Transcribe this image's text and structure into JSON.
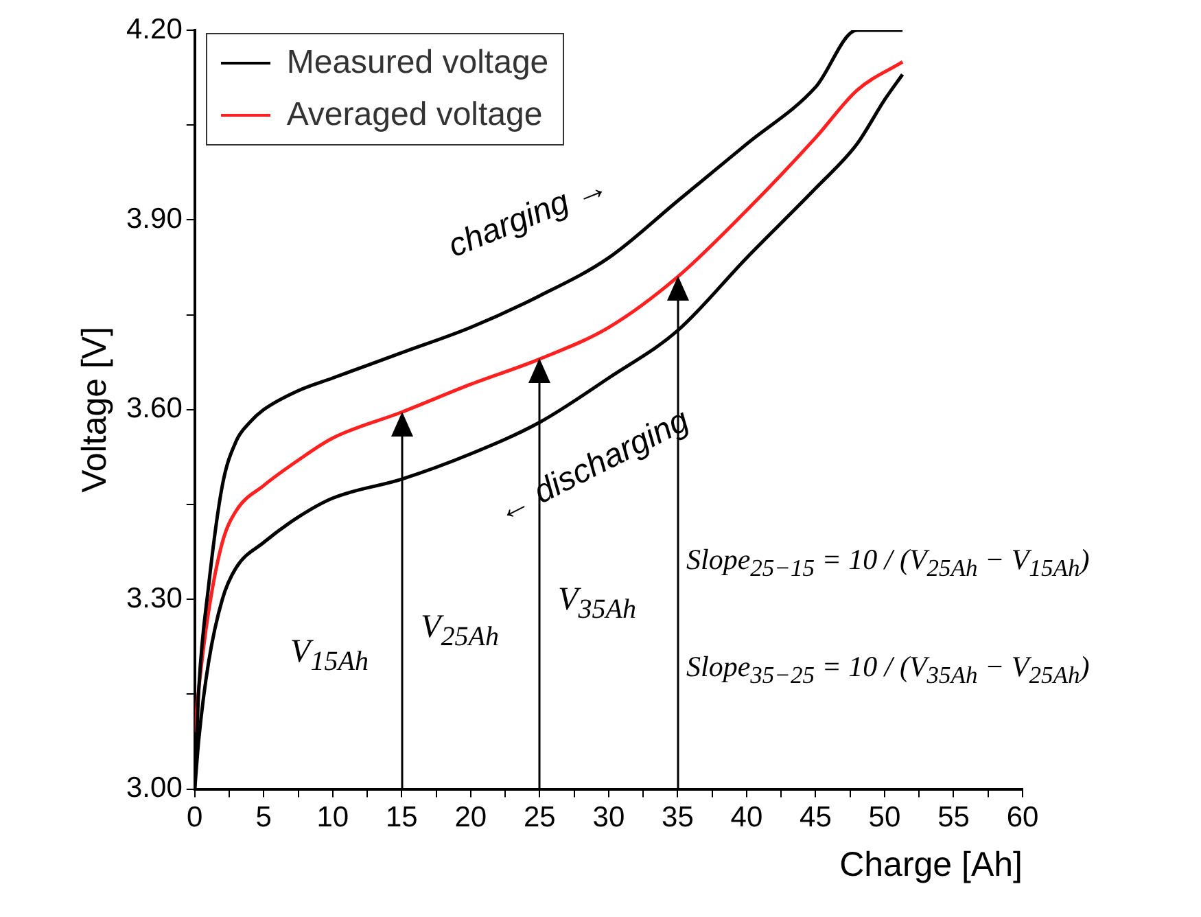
{
  "chart_data": {
    "type": "line",
    "xlabel": "Charge [Ah]",
    "ylabel": "Voltage [V]",
    "xlim": [
      0,
      60
    ],
    "xticks": [
      0,
      {
        "value": 2.5,
        "label": null
      },
      5,
      {
        "value": 7.5,
        "label": null
      },
      10,
      {
        "value": 12.5,
        "label": null
      },
      15,
      {
        "value": 17.5,
        "label": null
      },
      20,
      {
        "value": 22.5,
        "label": null
      },
      25,
      {
        "value": 27.5,
        "label": null
      },
      30,
      {
        "value": 32.5,
        "label": null
      },
      35,
      {
        "value": 37.5,
        "label": null
      },
      40,
      {
        "value": 42.5,
        "label": null
      },
      45,
      {
        "value": 47.5,
        "label": null
      },
      50,
      {
        "value": 52.5,
        "label": null
      },
      55,
      {
        "value": 57.5,
        "label": null
      },
      60
    ],
    "ylim": [
      3.0,
      4.2
    ],
    "yticks": [
      {
        "value": 3.0,
        "label": "3.00"
      },
      {
        "value": 3.15,
        "label": null
      },
      {
        "value": 3.3,
        "label": "3.30"
      },
      {
        "value": 3.45,
        "label": null
      },
      {
        "value": 3.6,
        "label": "3.60"
      },
      {
        "value": 3.75,
        "label": null
      },
      {
        "value": 3.9,
        "label": "3.90"
      },
      {
        "value": 4.05,
        "label": null
      },
      {
        "value": 4.2,
        "label": "4.20"
      }
    ],
    "legend": "top left",
    "grid": false,
    "series": [
      {
        "name": "Measured voltage",
        "color": "#000000",
        "x": [
          0,
          0.3,
          1,
          2,
          3,
          4,
          5,
          7.5,
          10,
          12.5,
          15,
          20,
          25,
          30,
          35,
          40,
          45,
          48,
          51.3
        ],
        "values": [
          3.0,
          3.16,
          3.32,
          3.48,
          3.55,
          3.58,
          3.6,
          3.63,
          3.65,
          3.67,
          3.69,
          3.73,
          3.78,
          3.84,
          3.93,
          4.02,
          4.11,
          4.2,
          4.2
        ]
      },
      {
        "name": "Averaged voltage",
        "color": "#ff2020",
        "x": [
          0,
          0.3,
          1,
          2,
          3,
          5,
          7.5,
          10,
          15,
          20,
          25,
          30,
          35,
          40,
          45,
          48,
          51.3
        ],
        "values": [
          3.09,
          3.16,
          3.28,
          3.39,
          3.44,
          3.48,
          3.52,
          3.555,
          3.596,
          3.64,
          3.68,
          3.73,
          3.81,
          3.915,
          4.03,
          4.105,
          4.15
        ]
      },
      {
        "color": "#000000",
        "x": [
          0,
          0.3,
          1,
          2,
          3,
          5,
          7.5,
          10,
          15,
          20,
          25,
          30,
          35,
          40,
          45,
          48,
          50,
          51.3
        ],
        "values": [
          3.0,
          3.08,
          3.2,
          3.3,
          3.35,
          3.39,
          3.43,
          3.46,
          3.49,
          3.53,
          3.58,
          3.65,
          3.725,
          3.84,
          3.95,
          4.02,
          4.09,
          4.13
        ]
      }
    ],
    "annotations": [
      "charging →",
      "← discharging",
      "V$_{15Ah}$",
      "V$_{25Ah}$",
      "V$_{35Ah}$",
      "Slope$_{25−15}$ = 10 / (V$_{25Ah}$ − V$_{15Ah}$)",
      "Slope$_{35−25}$ = 10 / (V$_{35Ah}$ − V$_{25Ah}$)"
    ]
  }
}
